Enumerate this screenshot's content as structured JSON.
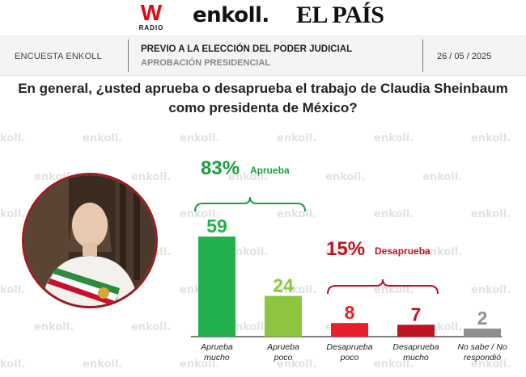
{
  "logos": {
    "w_letter": "W",
    "w_radio": "RADIO",
    "enkoll": "enkoll.",
    "el_pais": "EL PAÍS"
  },
  "header": {
    "left_label": "ENCUESTA ENKOLL",
    "title": "PREVIO A LA ELECCIÓN DEL PODER JUDICIAL",
    "subtitle": "APROBACIÓN PRESIDENCIAL",
    "date": "26 / 05 / 2025"
  },
  "question": "En general, ¿usted aprueba o desaprueba el trabajo de Claudia Sheinbaum como presidenta de México?",
  "watermark_text": "enkoll.",
  "colors": {
    "approve_dark": "#22b14c",
    "approve_light": "#8cc63f",
    "disapprove_light": "#e8202a",
    "disapprove_dark": "#c1121f",
    "no_answer": "#8f8f8f",
    "approve_label": "#1e9e3e",
    "disapprove_label": "#c1121f"
  },
  "chart_data": {
    "type": "bar",
    "title": "",
    "xlabel": "",
    "ylabel": "",
    "ylim": [
      0,
      59
    ],
    "categories": [
      "Aprueba mucho",
      "Aprueba poco",
      "Desaprueba poco",
      "Desaprueba mucho",
      "No sabe / No respondió"
    ],
    "values": [
      59,
      24,
      8,
      7,
      2
    ],
    "category_lines": [
      [
        "Aprueba",
        "mucho"
      ],
      [
        "Aprueba",
        "poco"
      ],
      [
        "Desaprueba",
        "poco"
      ],
      [
        "Desaprueba",
        "mucho"
      ],
      [
        "No sabe / No",
        "respondió"
      ]
    ],
    "groups": [
      {
        "percent": "83%",
        "label": "Aprueba",
        "members": [
          0,
          1
        ]
      },
      {
        "percent": "15%",
        "label": "Desaprueba",
        "members": [
          2,
          3
        ]
      }
    ],
    "grid": false
  }
}
